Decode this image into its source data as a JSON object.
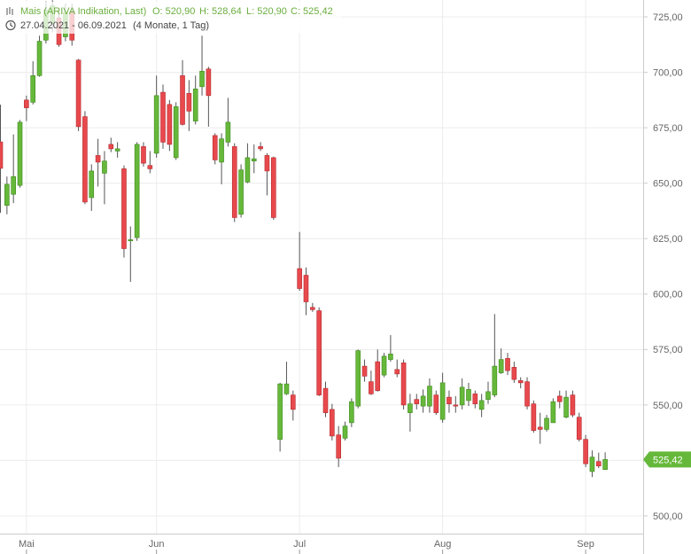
{
  "chart_data": {
    "type": "candlestick",
    "header": {
      "name": "Mais (ARIVA Indikation, Last)",
      "open": "O: 520,90",
      "high": "H: 528,64",
      "low": "L: 520,90",
      "close": "C: 525,42",
      "range": "27.04.2021 - 06.09.2021",
      "duration": "(4 Monate, 1 Tag)"
    },
    "categories": [
      null,
      null,
      null,
      null,
      "Mai",
      null,
      null,
      null,
      null,
      null,
      null,
      null,
      null,
      null,
      null,
      null,
      null,
      null,
      null,
      null,
      null,
      null,
      null,
      null,
      "Jun",
      null,
      null,
      null,
      null,
      null,
      null,
      null,
      null,
      null,
      null,
      null,
      null,
      null,
      null,
      null,
      null,
      null,
      null,
      null,
      null,
      null,
      "Jul",
      null,
      null,
      null,
      null,
      null,
      null,
      null,
      null,
      null,
      null,
      null,
      null,
      null,
      null,
      null,
      null,
      null,
      null,
      null,
      null,
      null,
      "Aug",
      null,
      null,
      null,
      null,
      null,
      null,
      null,
      null,
      null,
      null,
      null,
      null,
      null,
      null,
      null,
      null,
      null,
      null,
      null,
      null,
      null,
      "Sep",
      null,
      null,
      null
    ],
    "open": [
      668.6,
      640,
      645,
      649,
      687.5,
      686.5,
      698.5,
      714.5,
      722,
      724.5,
      716,
      727.5,
      705.5,
      680,
      643.5,
      662.5,
      654.5,
      667.5,
      664.5,
      656.5,
      624,
      625.5,
      666.5,
      658,
      663.5,
      691,
      685.5,
      661.5,
      698.5,
      690.5,
      678,
      693.5,
      701.5,
      671.5,
      659.5,
      668.5,
      666.5,
      636,
      650.5,
      660,
      666.5,
      662.5,
      661.5,
      534.5,
      555,
      554.5,
      611.5,
      608.5,
      594,
      592.5,
      557.5,
      548,
      536.5,
      535,
      542,
      549.5,
      567.5,
      560.5,
      569.5,
      563.5,
      570.5,
      566,
      569,
      546.5,
      552.5,
      549.5,
      549.5,
      554.5,
      543.5,
      553.5,
      550,
      550,
      552,
      555,
      548,
      552.5,
      554.5,
      564.5,
      571,
      567,
      561,
      560.5,
      550.5,
      540,
      539,
      542,
      554,
      544.5,
      554.5,
      544.5,
      534.5,
      520,
      524.5,
      520.9
    ],
    "high": [
      685.4,
      653,
      672,
      678.5,
      689.5,
      705,
      716.5,
      732,
      732.5,
      728.5,
      731,
      731,
      706,
      682.5,
      658.5,
      670,
      664.5,
      670.5,
      668.5,
      658,
      630.5,
      668.5,
      668.5,
      664.5,
      698.5,
      694.5,
      687.5,
      686.5,
      705.5,
      696.5,
      698.5,
      716.5,
      702.5,
      672.5,
      672.5,
      688.5,
      668,
      658.5,
      668,
      667.5,
      668.5,
      663.5,
      662,
      560,
      569.5,
      556.5,
      628,
      612,
      596,
      594,
      560.5,
      550.5,
      540.5,
      542.5,
      553,
      575,
      570.5,
      565.5,
      575,
      573.5,
      581.5,
      570.5,
      570.5,
      555,
      555,
      557,
      562,
      556.5,
      564.5,
      556.5,
      554,
      562,
      560,
      556.5,
      555,
      560.5,
      591,
      575.5,
      573.5,
      569.5,
      562.5,
      562.5,
      552,
      546.5,
      545.5,
      553,
      556.5,
      556.5,
      556.5,
      546.5,
      536.5,
      529.5,
      528.5,
      528.64
    ],
    "low": [
      636.7,
      636,
      641,
      648,
      678,
      685.5,
      698,
      713,
      718,
      711.5,
      714,
      712,
      673.5,
      640.5,
      637.5,
      648.5,
      640.5,
      664,
      661.5,
      616.5,
      605.5,
      624,
      657.5,
      654.5,
      661.5,
      665.5,
      664.5,
      660.5,
      676,
      673.5,
      676.5,
      689.5,
      675.5,
      658.5,
      649.5,
      666.5,
      632.5,
      634.5,
      650,
      654.5,
      664.5,
      644.5,
      633.5,
      529,
      554.5,
      543,
      601.5,
      590.5,
      592,
      554,
      544.5,
      534,
      522,
      534,
      540,
      548.5,
      560.5,
      554.5,
      556,
      562.5,
      569.5,
      562.5,
      548,
      538,
      548,
      546.5,
      546.5,
      545.5,
      542,
      546.5,
      546.5,
      548,
      549.5,
      548.5,
      544.5,
      550.5,
      553.5,
      564,
      563.5,
      560,
      557.5,
      548,
      537.5,
      532.5,
      538,
      542,
      548.5,
      544,
      544.5,
      533.5,
      522,
      517.5,
      521.5,
      520.9
    ],
    "close": [
      656.7,
      649.5,
      653,
      677.5,
      684,
      698.5,
      714,
      728,
      730,
      712.5,
      727,
      714.5,
      675.5,
      641.5,
      655.5,
      659.5,
      660,
      665.5,
      665.5,
      620.5,
      624.5,
      667.5,
      659,
      656.5,
      689.5,
      668.5,
      667.5,
      684.5,
      676.5,
      682.5,
      692.5,
      700.5,
      689.5,
      660.5,
      670,
      677.5,
      634.5,
      656,
      661.5,
      661,
      665.5,
      655.5,
      634.5,
      559.5,
      559.5,
      548,
      602.5,
      596.5,
      593,
      554.5,
      546.5,
      536,
      526,
      540.5,
      551.5,
      574.5,
      563,
      555,
      556.5,
      572,
      573,
      564,
      550,
      550.5,
      550.5,
      554,
      558.5,
      546.5,
      560,
      550.5,
      549.5,
      558,
      557,
      550.5,
      552,
      556,
      567.5,
      570.5,
      565.5,
      561.5,
      560,
      549.5,
      538.5,
      539,
      544,
      551.5,
      551.5,
      553.5,
      545.5,
      534.5,
      523.5,
      526.5,
      522.5,
      525.42
    ],
    "up_color": "#66b83a",
    "down_color": "#e8494d",
    "last_price": {
      "value": 525.42,
      "label": "525,42"
    },
    "ylim": [
      492.8,
      732.6
    ],
    "yticks": [
      {
        "value": 500,
        "label": "500,00"
      },
      {
        "value": 525,
        "label": "525,00"
      },
      {
        "value": 550,
        "label": "550,00"
      },
      {
        "value": 575,
        "label": "575,00"
      },
      {
        "value": 600,
        "label": "600,00"
      },
      {
        "value": 625,
        "label": "625,00"
      },
      {
        "value": 650,
        "label": "650,00"
      },
      {
        "value": 675,
        "label": "675,00"
      },
      {
        "value": 700,
        "label": "700,00"
      },
      {
        "value": 725,
        "label": "725,00"
      }
    ],
    "grid": true
  }
}
